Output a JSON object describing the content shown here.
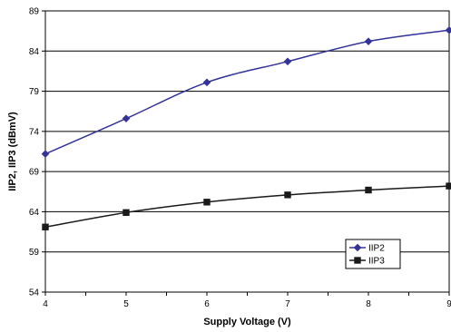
{
  "chart_data": {
    "type": "line",
    "title": "",
    "xlabel": "Supply Voltage (V)",
    "ylabel": "IIP2, IIP3 (dBmV)",
    "xlim": [
      4,
      9
    ],
    "ylim": [
      54,
      89
    ],
    "x_ticks": [
      4,
      5,
      6,
      7,
      8,
      9
    ],
    "y_ticks": [
      54,
      59,
      64,
      69,
      74,
      79,
      84,
      89
    ],
    "grid": "horizontal",
    "legend_position": "lower-right",
    "series": [
      {
        "name": "IIP2",
        "color": "#333399",
        "marker": "diamond",
        "x": [
          4,
          5,
          6,
          7,
          8,
          9
        ],
        "values": [
          71.2,
          75.6,
          80.1,
          82.7,
          85.2,
          86.6
        ]
      },
      {
        "name": "IIP3",
        "color": "#1a1a1a",
        "marker": "square",
        "x": [
          4,
          5,
          6,
          7,
          8,
          9
        ],
        "values": [
          62.1,
          63.9,
          65.2,
          66.1,
          66.7,
          67.2
        ]
      }
    ]
  }
}
